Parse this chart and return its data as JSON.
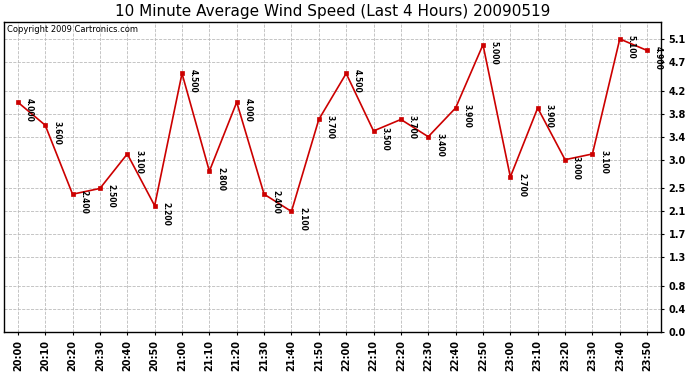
{
  "title": "10 Minute Average Wind Speed (Last 4 Hours) 20090519",
  "copyright": "Copyright 2009 Cartronics.com",
  "times": [
    "20:00",
    "20:10",
    "20:20",
    "20:30",
    "20:40",
    "20:50",
    "21:00",
    "21:10",
    "21:20",
    "21:30",
    "21:40",
    "21:50",
    "22:00",
    "22:10",
    "22:20",
    "22:30",
    "22:40",
    "22:50",
    "23:00",
    "23:10",
    "23:20",
    "23:30",
    "23:40",
    "23:50"
  ],
  "values": [
    4.0,
    3.6,
    2.4,
    2.5,
    3.1,
    2.2,
    4.5,
    2.8,
    4.0,
    2.4,
    2.1,
    3.7,
    4.5,
    3.5,
    3.7,
    3.4,
    3.9,
    5.0,
    2.7,
    3.9,
    3.0,
    3.1,
    5.1,
    4.9
  ],
  "yticks": [
    0.0,
    0.4,
    0.8,
    1.3,
    1.7,
    2.1,
    2.5,
    3.0,
    3.4,
    3.8,
    4.2,
    4.7,
    5.1
  ],
  "ylim": [
    0.0,
    5.4
  ],
  "line_color": "#cc0000",
  "marker_color": "#cc0000",
  "bg_color": "#ffffff",
  "grid_color": "#bbbbbb",
  "title_fontsize": 11,
  "copyright_fontsize": 6,
  "tick_fontsize": 7,
  "label_fontsize": 6
}
